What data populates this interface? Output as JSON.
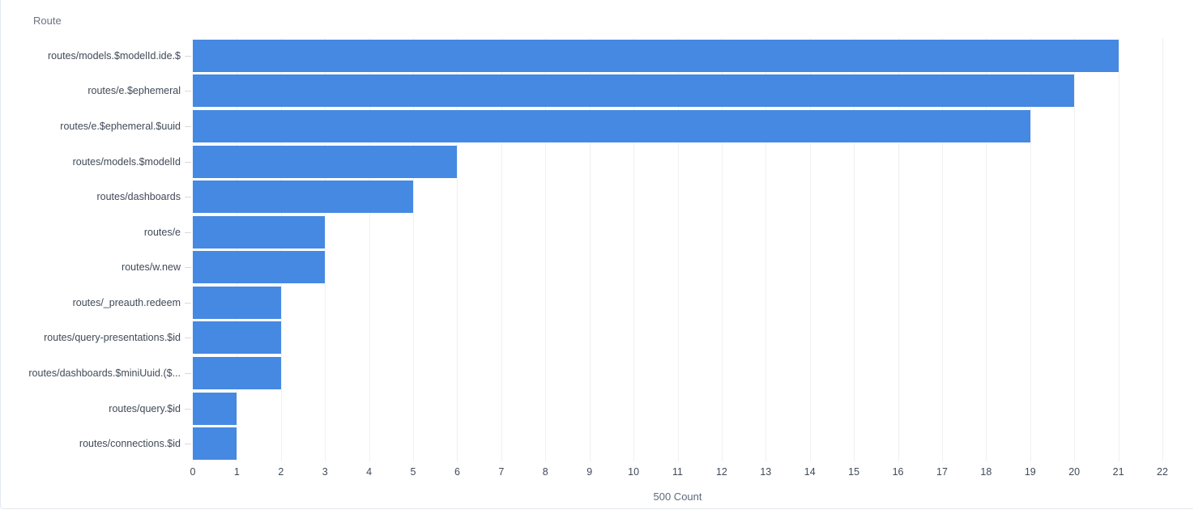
{
  "panel": {
    "title": "Route"
  },
  "chart_data": {
    "type": "bar",
    "orientation": "horizontal",
    "title": "Route",
    "xlabel": "500 Count",
    "ylabel": "Route",
    "categories": [
      "routes/models.$modelId.ide.$",
      "routes/e.$ephemeral",
      "routes/e.$ephemeral.$uuid",
      "routes/models.$modelId",
      "routes/dashboards",
      "routes/e",
      "routes/w.new",
      "routes/_preauth.redeem",
      "routes/query-presentations.$id",
      "routes/dashboards.$miniUuid.($...",
      "routes/query.$id",
      "routes/connections.$id"
    ],
    "values": [
      21,
      20,
      19,
      6,
      5,
      3,
      3,
      2,
      2,
      2,
      1,
      1
    ],
    "xlim": [
      0,
      22
    ],
    "xticks": [
      0,
      1,
      2,
      3,
      4,
      5,
      6,
      7,
      8,
      9,
      10,
      11,
      12,
      13,
      14,
      15,
      16,
      17,
      18,
      19,
      20,
      21,
      22
    ],
    "grid": true,
    "legend": "none",
    "colors": {
      "bar": "#4589e2",
      "gridline": "#f0f0f0",
      "axis_tick": "#d9d9d9",
      "label_text": "#404a57",
      "title_text": "#6a7482",
      "axis_name_text": "#5d6b7c",
      "panel_border": "#e3e8f0"
    }
  }
}
